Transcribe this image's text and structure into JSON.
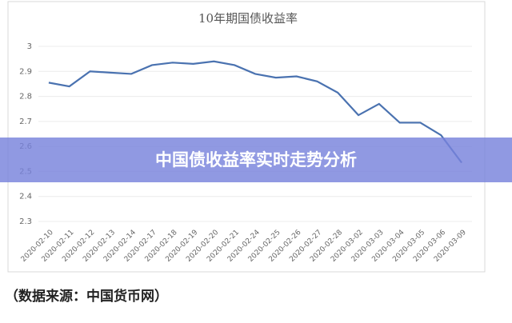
{
  "chart_data": {
    "type": "line",
    "title": "10年期国债收益率",
    "categories": [
      "2020-02-10",
      "2020-02-11",
      "2020-02-12",
      "2020-02-13",
      "2020-02-14",
      "2020-02-17",
      "2020-02-18",
      "2020-02-19",
      "2020-02-20",
      "2020-02-21",
      "2020-02-24",
      "2020-02-25",
      "2020-02-26",
      "2020-02-27",
      "2020-02-28",
      "2020-03-02",
      "2020-03-03",
      "2020-03-04",
      "2020-03-05",
      "2020-03-06",
      "2020-03-09"
    ],
    "values": [
      2.855,
      2.84,
      2.9,
      2.895,
      2.89,
      2.925,
      2.935,
      2.93,
      2.94,
      2.925,
      2.89,
      2.875,
      2.88,
      2.86,
      2.815,
      2.725,
      2.77,
      2.695,
      2.695,
      2.645,
      2.535
    ],
    "color": "#4a72b0",
    "ylim": [
      2.3,
      3
    ],
    "yticks": [
      2.3,
      2.4,
      2.5,
      2.6,
      2.7,
      2.8,
      2.9,
      3
    ],
    "grid": true
  },
  "banner": "中国债收益率实时走势分析",
  "source": "（数据来源：中国货币网）"
}
